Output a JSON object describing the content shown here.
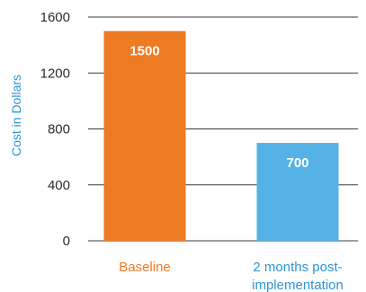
{
  "chart_data": {
    "type": "bar",
    "title": "",
    "xlabel": "",
    "ylabel": "Cost in Dollars",
    "ylim": [
      0,
      1600
    ],
    "yticks": [
      0,
      400,
      800,
      1200,
      1600
    ],
    "categories": [
      "Baseline",
      "2 months post-implementation"
    ],
    "category_lines": [
      [
        "Baseline"
      ],
      [
        "2 months post-",
        "implementation"
      ]
    ],
    "values": [
      1500,
      700
    ],
    "data_labels": [
      "1500",
      "700"
    ],
    "bar_colors": [
      "#ee7a22",
      "#55b2e6"
    ],
    "category_label_colors": [
      "#ee7a22",
      "#2b95d3"
    ],
    "ylabel_color": "#2b95d3",
    "grid": true,
    "legend": "none"
  }
}
